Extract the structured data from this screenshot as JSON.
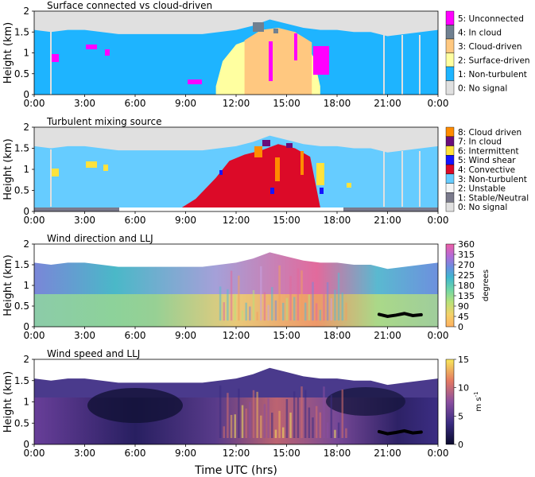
{
  "figure": {
    "xlabel": "Time UTC (hrs)"
  },
  "chart_data": [
    {
      "type": "heatmap",
      "title": "Surface connected vs cloud-driven",
      "ylabel": "Height (km)",
      "ylim": [
        0,
        2
      ],
      "yticks": [
        "0",
        "0.5",
        "1",
        "1.5",
        "2"
      ],
      "xlim": [
        0,
        24
      ],
      "xticks": [
        "0:00",
        "3:00",
        "6:00",
        "9:00",
        "12:00",
        "15:00",
        "18:00",
        "21:00",
        "0:00"
      ],
      "colorbar": {
        "kind": "categorical",
        "entries": [
          {
            "label": "5: Unconnected",
            "color": "#ff00ff"
          },
          {
            "label": "4: In cloud",
            "color": "#708090"
          },
          {
            "label": "3: Cloud-driven",
            "color": "#ffc880"
          },
          {
            "label": "2: Surface-driven",
            "color": "#ffffa0"
          },
          {
            "label": "1: Non-turbulent",
            "color": "#1eb4ff"
          },
          {
            "label": "0: No signal",
            "color": "#e0e0e0"
          }
        ]
      },
      "layers": [
        {
          "category": "1: Non-turbulent",
          "x": [
            0,
            1,
            2,
            3,
            4,
            5,
            6,
            7,
            8,
            9,
            10,
            11,
            12,
            13,
            14,
            15,
            16,
            17,
            18,
            19,
            20,
            21,
            22,
            23,
            24
          ],
          "top_km": [
            1.55,
            1.5,
            1.55,
            1.55,
            1.5,
            1.45,
            1.45,
            1.45,
            1.45,
            1.45,
            1.45,
            1.5,
            1.55,
            1.65,
            1.8,
            1.7,
            1.6,
            1.55,
            1.55,
            1.5,
            1.5,
            1.4,
            1.45,
            1.5,
            1.55
          ]
        },
        {
          "category": "2: Surface-driven",
          "x": [
            10.8,
            11.2,
            12,
            13,
            14,
            15,
            16,
            16.6,
            17
          ],
          "top_km": [
            0.2,
            0.8,
            1.2,
            1.35,
            1.5,
            1.45,
            1.3,
            0.9,
            0.2
          ]
        },
        {
          "category": "3: Cloud-driven",
          "x": [
            12.5,
            13.5,
            14.5,
            15.5,
            16.5
          ],
          "top_km": [
            1.3,
            1.55,
            1.6,
            1.5,
            1.25
          ]
        }
      ]
    },
    {
      "type": "heatmap",
      "title": "Turbulent mixing source",
      "ylabel": "Height (km)",
      "ylim": [
        0,
        2
      ],
      "yticks": [
        "0",
        "0.5",
        "1",
        "1.5",
        "2"
      ],
      "xlim": [
        0,
        24
      ],
      "xticks": [
        "0:00",
        "3:00",
        "6:00",
        "9:00",
        "12:00",
        "15:00",
        "18:00",
        "21:00",
        "0:00"
      ],
      "colorbar": {
        "kind": "categorical",
        "entries": [
          {
            "label": "8: Cloud driven",
            "color": "#ff8c00"
          },
          {
            "label": "7: In cloud",
            "color": "#6a0e7a"
          },
          {
            "label": "6: Intermittent",
            "color": "#ffe23c"
          },
          {
            "label": "5: Wind shear",
            "color": "#1414ff"
          },
          {
            "label": "4: Convective",
            "color": "#dc0a28"
          },
          {
            "label": "3: Non-turbulent",
            "color": "#66ccff"
          },
          {
            "label": "2: Unstable",
            "color": "#f4f4f4"
          },
          {
            "label": "1: Stable/Neutral",
            "color": "#7a7a8c"
          },
          {
            "label": "0: No signal",
            "color": "#e0e0e0"
          }
        ]
      },
      "layers": [
        {
          "category": "3: Non-turbulent",
          "x": [
            0,
            1,
            2,
            3,
            4,
            5,
            6,
            7,
            8,
            9,
            10,
            11,
            12,
            13,
            14,
            15,
            16,
            17,
            18,
            19,
            20,
            21,
            22,
            23,
            24
          ],
          "top_km": [
            1.55,
            1.5,
            1.55,
            1.55,
            1.5,
            1.45,
            1.45,
            1.45,
            1.45,
            1.45,
            1.45,
            1.5,
            1.55,
            1.65,
            1.8,
            1.7,
            1.6,
            1.55,
            1.55,
            1.5,
            1.5,
            1.4,
            1.45,
            1.5,
            1.55
          ]
        },
        {
          "category": "4: Convective",
          "x": [
            8.6,
            9.6,
            10.8,
            11.6,
            12.5,
            13.5,
            14.5,
            15.5,
            16.4,
            17
          ],
          "top_km": [
            0.05,
            0.3,
            0.8,
            1.2,
            1.35,
            1.45,
            1.6,
            1.5,
            1.3,
            0.1
          ]
        }
      ],
      "surface_bar": [
        {
          "category": "1: Stable/Neutral",
          "from": 0,
          "to": 4.8
        },
        {
          "category": "2: Unstable",
          "from": 4.8,
          "to": 18.5
        },
        {
          "category": "1: Stable/Neutral",
          "from": 18.5,
          "to": 24
        }
      ]
    },
    {
      "type": "heatmap",
      "title": "Wind direction and LLJ",
      "ylabel": "Height (km)",
      "ylim": [
        0,
        2
      ],
      "yticks": [
        "0",
        "0.5",
        "1",
        "1.5",
        "2"
      ],
      "xlim": [
        0,
        24
      ],
      "xticks": [
        "0:00",
        "3:00",
        "6:00",
        "9:00",
        "12:00",
        "15:00",
        "18:00",
        "21:00",
        "0:00"
      ],
      "colorbar": {
        "kind": "continuous",
        "label": "degrees",
        "ticks": [
          "0",
          "45",
          "90",
          "135",
          "180",
          "225",
          "270",
          "315",
          "360"
        ],
        "range": [
          0,
          360
        ]
      },
      "llj": {
        "x": [
          20.5,
          21,
          21.5,
          22,
          22.5,
          23
        ],
        "height_km": [
          0.3,
          0.25,
          0.28,
          0.32,
          0.27,
          0.29
        ]
      }
    },
    {
      "type": "heatmap",
      "title": "Wind speed and LLJ",
      "ylabel": "Height (km)",
      "ylim": [
        0,
        2
      ],
      "yticks": [
        "0",
        "0.5",
        "1",
        "1.5",
        "2"
      ],
      "xlim": [
        0,
        24
      ],
      "xticks": [
        "0:00",
        "3:00",
        "6:00",
        "9:00",
        "12:00",
        "15:00",
        "18:00",
        "21:00",
        "0:00"
      ],
      "colorbar": {
        "kind": "continuous",
        "label": "m s",
        "label_sup": "-1",
        "ticks": [
          "0",
          "5",
          "10",
          "15"
        ],
        "range": [
          0,
          15
        ]
      },
      "llj": {
        "x": [
          20.5,
          21,
          21.5,
          22,
          22.5,
          23
        ],
        "height_km": [
          0.3,
          0.25,
          0.28,
          0.32,
          0.27,
          0.29
        ]
      }
    }
  ]
}
